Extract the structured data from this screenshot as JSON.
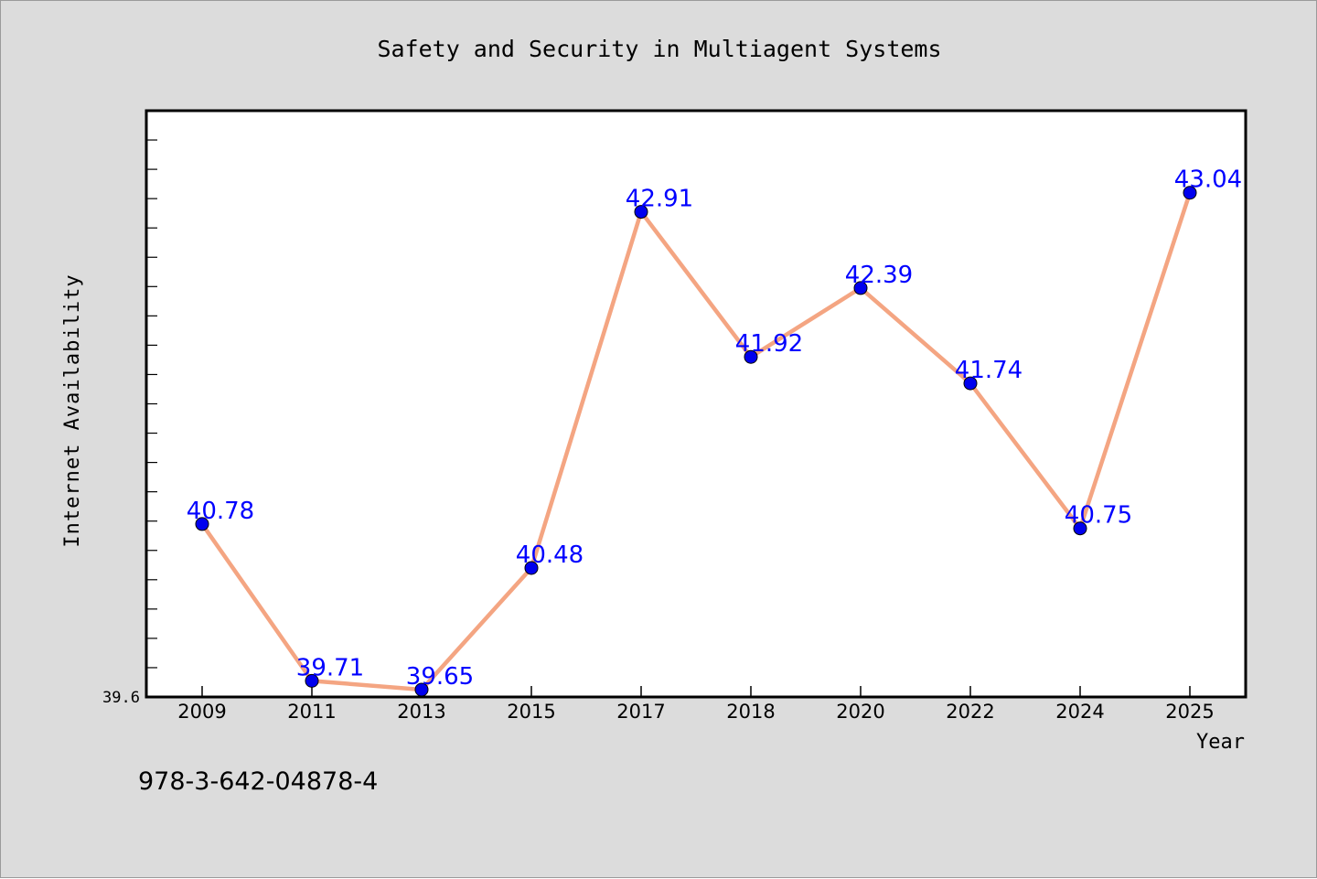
{
  "chart_data": {
    "type": "line",
    "title": "Safety and Security in Multiagent Systems",
    "xlabel": "Year",
    "ylabel": "Internet Availability",
    "categories": [
      "2009",
      "2011",
      "2013",
      "2015",
      "2017",
      "2018",
      "2020",
      "2022",
      "2024",
      "2025"
    ],
    "series": [
      {
        "values": [
          40.78,
          39.71,
          39.65,
          40.48,
          42.91,
          41.92,
          42.39,
          41.74,
          40.75,
          43.04
        ],
        "value_labels": [
          "40.78",
          "39.71",
          "39.65",
          "40.48",
          "42.91",
          "41.92",
          "42.39",
          "41.74",
          "40.75",
          "43.04"
        ]
      }
    ],
    "ylim": [
      39.6,
      43.6
    ],
    "y_tick_labels": [
      "39.6"
    ],
    "grid": false,
    "legend": "none",
    "colors": {
      "line": "#f4a582",
      "marker": "#0000ee",
      "data_label": "#0000ff",
      "background": "#dcdcdc",
      "plot_background": "#ffffff"
    }
  },
  "footer": {
    "isbn": "978-3-642-04878-4"
  }
}
